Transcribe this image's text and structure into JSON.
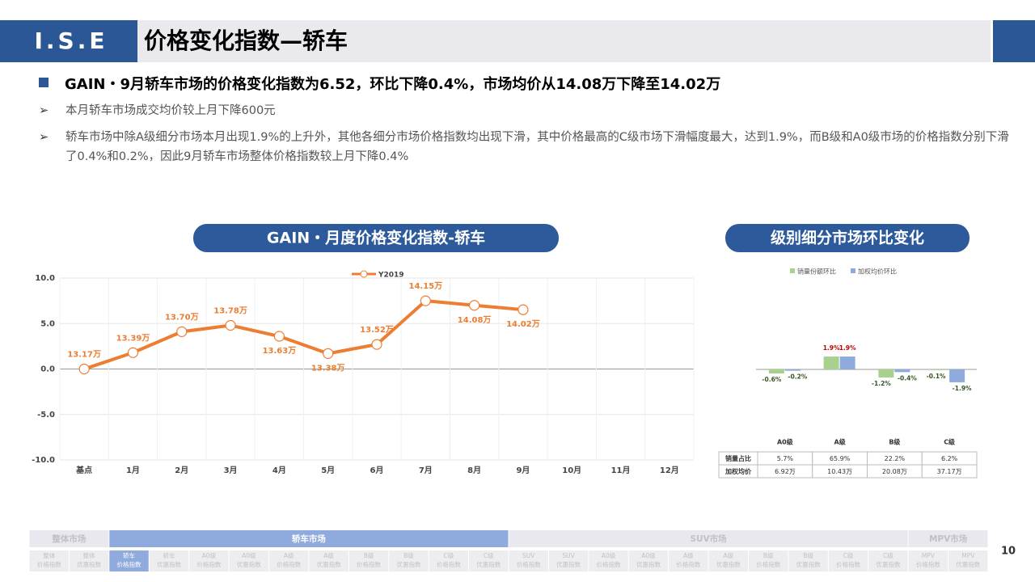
{
  "header": {
    "logo": "I.S.E",
    "title": "价格变化指数—轿车"
  },
  "summary": {
    "headline": "GAIN・9月轿车市场的价格变化指数为6.52，环比下降0.4%，市场均价从14.08万下降至14.02万",
    "points": [
      "本月轿车市场成交均价较上月下降600元",
      "轿车市场中除A级细分市场本月出现1.9%的上升外，其他各细分市场价格指数均出现下滑，其中价格最高的C级市场下滑幅度最大，达到1.9%，而B级和A0级市场的价格指数分别下滑了0.4%和0.2%，因此9月轿车市场整体价格指数较上月下降0.4%"
    ]
  },
  "chart_data": [
    {
      "type": "line",
      "title": "GAIN・月度价格变化指数-轿车",
      "categories": [
        "基点",
        "1月",
        "2月",
        "3月",
        "4月",
        "5月",
        "6月",
        "7月",
        "8月",
        "9月",
        "10月",
        "11月",
        "12月"
      ],
      "series": [
        {
          "name": "Y2019",
          "color": "#ed7d31",
          "values": [
            0,
            1.8,
            4.1,
            4.8,
            3.6,
            1.7,
            2.7,
            7.5,
            7.0,
            6.52,
            null,
            null,
            null
          ]
        }
      ],
      "annotations": [
        "13.17万",
        "13.39万",
        "13.70万",
        "13.78万",
        "13.63万",
        "13.38万",
        "13.52万",
        "14.15万",
        "14.08万",
        "14.02万",
        null,
        null,
        null
      ],
      "ylim": [
        -10,
        10
      ],
      "yticks": [
        {
          "value": -10,
          "label": "-10.0"
        },
        {
          "value": -5,
          "label": "-5.0"
        },
        {
          "value": 0,
          "label": "0.0"
        },
        {
          "value": 5,
          "label": "5.0"
        },
        {
          "value": 10,
          "label": "10.0"
        }
      ],
      "grid": true,
      "legend": "top"
    },
    {
      "type": "bar",
      "title": "级别细分市场环比变化",
      "categories": [
        "A0级",
        "A级",
        "B级",
        "C级"
      ],
      "series": [
        {
          "name": "销量份额环比",
          "color": "#a9d18e",
          "values": [
            -0.6,
            1.9,
            -1.2,
            -0.1
          ],
          "value_labels": [
            "-0.6%",
            "1.9%",
            "-1.2%",
            "-0.1%"
          ]
        },
        {
          "name": "加权均价环比",
          "color": "#8faadc",
          "values": [
            -0.2,
            1.9,
            -0.4,
            -1.9
          ],
          "value_labels": [
            "-0.2%",
            "1.9%",
            "-0.4%",
            "-1.9%"
          ]
        }
      ],
      "ylim": [
        -8,
        8
      ],
      "legend": "top",
      "table": [
        {
          "label": "销量占比",
          "cells": [
            "5.7%",
            "65.9%",
            "22.2%",
            "6.2%"
          ]
        },
        {
          "label": "加权均价",
          "cells": [
            "6.92万",
            "10.43万",
            "20.08万",
            "37.17万"
          ]
        }
      ]
    }
  ],
  "nav": {
    "groups": [
      {
        "name": "整体市场",
        "span": 2
      },
      {
        "name": "轿车市场",
        "span": 10
      },
      {
        "name": "SUV市场",
        "span": 10
      },
      {
        "name": "MPV市场",
        "span": 2
      }
    ],
    "active_group": 1,
    "active_item": 2,
    "items": [
      [
        "整体",
        "价格指数"
      ],
      [
        "整体",
        "优惠指数"
      ],
      [
        "轿车",
        "价格指数"
      ],
      [
        "轿车",
        "优惠指数"
      ],
      [
        "A0级",
        "价格指数"
      ],
      [
        "A0级",
        "优惠指数"
      ],
      [
        "A级",
        "价格指数"
      ],
      [
        "A级",
        "优惠指数"
      ],
      [
        "B级",
        "价格指数"
      ],
      [
        "B级",
        "优惠指数"
      ],
      [
        "C级",
        "价格指数"
      ],
      [
        "C级",
        "优惠指数"
      ],
      [
        "SUV",
        "价格指数"
      ],
      [
        "SUV",
        "优惠指数"
      ],
      [
        "A0级",
        "价格指数"
      ],
      [
        "A0级",
        "优惠指数"
      ],
      [
        "A级",
        "价格指数"
      ],
      [
        "A级",
        "优惠指数"
      ],
      [
        "B级",
        "价格指数"
      ],
      [
        "B级",
        "优惠指数"
      ],
      [
        "C级",
        "价格指数"
      ],
      [
        "C级",
        "优惠指数"
      ],
      [
        "MPV",
        "价格指数"
      ],
      [
        "MPV",
        "优惠指数"
      ]
    ]
  },
  "page_number": "10"
}
